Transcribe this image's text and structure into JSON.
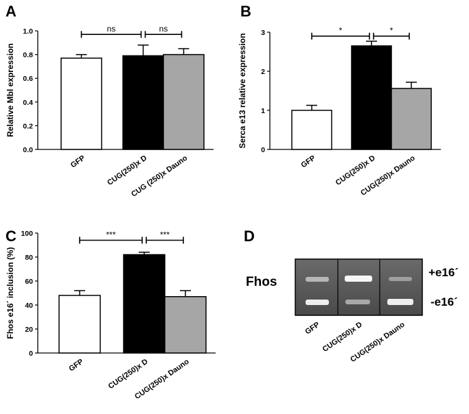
{
  "chart_data": [
    {
      "type": "bar",
      "panel_label": "A",
      "ylabel": "Relative Mbl expression",
      "categories": [
        "GFP",
        "CUG(250)x D",
        "CUG (250)x Dauno"
      ],
      "values": [
        0.77,
        0.79,
        0.8
      ],
      "errors": [
        0.03,
        0.09,
        0.05
      ],
      "colors": [
        "#ffffff",
        "#000000",
        "#a6a6a6"
      ],
      "ylim": [
        0,
        1
      ],
      "yticks": [
        {
          "value": 0,
          "label": "0.0"
        },
        0.2,
        0.4,
        0.6,
        0.8,
        {
          "value": 1,
          "label": "1.0"
        }
      ],
      "annotations": [
        {
          "text": "ns",
          "y": 0.97
        },
        {
          "text": "ns",
          "y": 0.97
        }
      ]
    },
    {
      "type": "bar",
      "panel_label": "B",
      "ylabel": "Serca e13 relative expression",
      "categories": [
        "GFP",
        "CUG(250)x D",
        "CUG(250)x Dauno"
      ],
      "values": [
        1.0,
        2.65,
        1.56
      ],
      "errors": [
        0.13,
        0.12,
        0.16
      ],
      "colors": [
        "#ffffff",
        "#000000",
        "#a6a6a6"
      ],
      "ylim": [
        0,
        3
      ],
      "yticks": [
        0,
        1,
        2,
        3
      ],
      "annotations": [
        {
          "text": "*",
          "y": 2.9
        },
        {
          "text": "*",
          "y": 2.9
        }
      ]
    },
    {
      "type": "bar",
      "panel_label": "C",
      "ylabel": "Fhos e16´ inclusion (%)",
      "categories": [
        "GFP",
        "CUG(250)x D",
        "CUG(250)x Dauno"
      ],
      "values": [
        48,
        82,
        47
      ],
      "errors": [
        4,
        2,
        5
      ],
      "colors": [
        "#ffffff",
        "#000000",
        "#a6a6a6"
      ],
      "ylim": [
        0,
        100
      ],
      "yticks": [
        0,
        20,
        40,
        60,
        80,
        100
      ],
      "annotations": [
        {
          "text": "***",
          "y": 94
        },
        {
          "text": "***",
          "y": 94
        }
      ]
    }
  ],
  "gel": {
    "panel_label": "D",
    "gene": "Fhos",
    "bands": [
      "+e16´",
      "-e16´"
    ],
    "lanes": [
      "GFP",
      "CUG(250)x D",
      "CUG(250)x Dauno"
    ]
  }
}
